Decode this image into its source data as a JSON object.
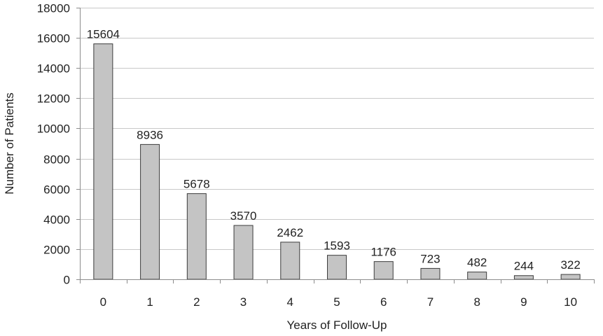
{
  "chart_data": {
    "type": "bar",
    "categories": [
      "0",
      "1",
      "2",
      "3",
      "4",
      "5",
      "6",
      "7",
      "8",
      "9",
      "10"
    ],
    "values": [
      15604,
      8936,
      5678,
      3570,
      2462,
      1593,
      1176,
      723,
      482,
      244,
      322
    ],
    "data_labels": [
      "15604",
      "8936",
      "5678",
      "3570",
      "2462",
      "1593",
      "1176",
      "723",
      "482",
      "244",
      "322"
    ],
    "title": "",
    "xlabel": "Years of Follow-Up",
    "ylabel": "Number of Patients",
    "ylim": [
      0,
      18000
    ],
    "yticks": [
      "0",
      "2000",
      "4000",
      "6000",
      "8000",
      "10000",
      "12000",
      "14000",
      "16000",
      "18000"
    ],
    "grid": true,
    "legend": "none"
  },
  "colors": {
    "bar_fill": "#c4c4c4",
    "bar_stroke": "#3c3c3c",
    "grid": "#c8c8c8",
    "axis": "#8c8c8c",
    "text": "#222222"
  }
}
